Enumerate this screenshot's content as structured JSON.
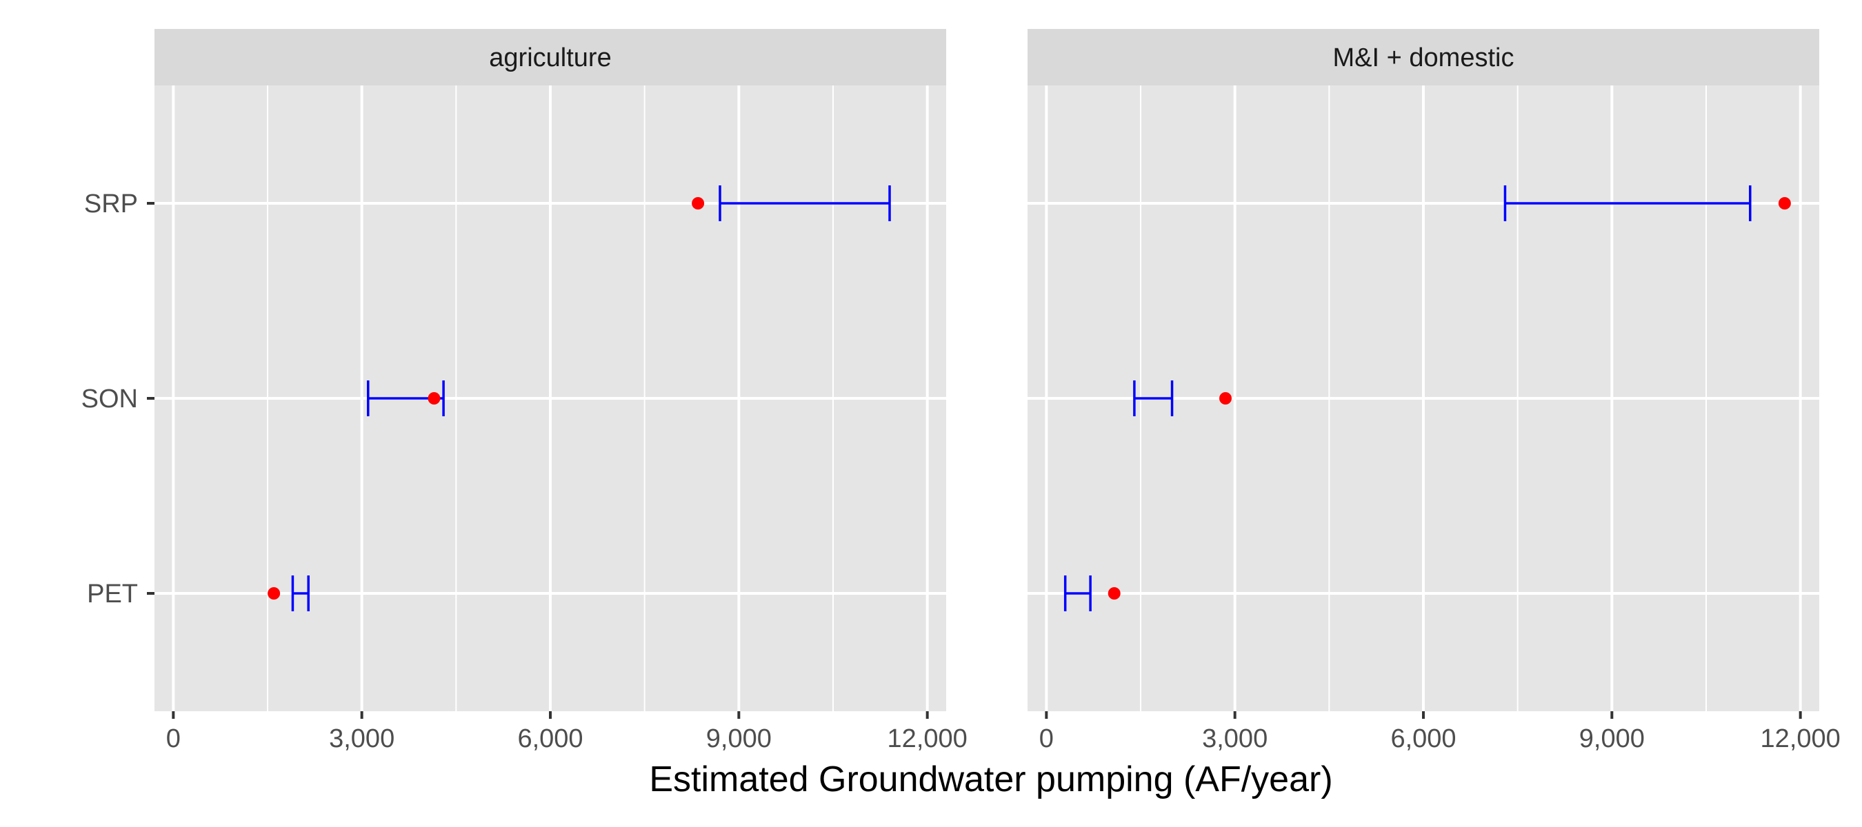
{
  "chart_data": {
    "type": "dot-errorbar",
    "xlabel": "Estimated Groundwater pumping (AF/year)",
    "ylabel": "",
    "xlim": [
      -300,
      12300
    ],
    "x_ticks": [
      0,
      3000,
      6000,
      9000,
      12000
    ],
    "x_tick_labels": [
      "0",
      "3,000",
      "6,000",
      "9,000",
      "12,000"
    ],
    "categories": [
      "SRP",
      "SON",
      "PET"
    ],
    "grid": true,
    "colors": {
      "point": "#ff0000",
      "errorbar": "#0000ff",
      "panel_bg": "#e5e5e5",
      "strip_bg": "#d9d9d9",
      "grid": "#ffffff"
    },
    "panels": [
      {
        "name": "agriculture",
        "points": {
          "SRP": 8350,
          "SON": 4150,
          "PET": 1600
        },
        "ranges": {
          "SRP": [
            8700,
            11400
          ],
          "SON": [
            3100,
            4300
          ],
          "PET": [
            1900,
            2150
          ]
        }
      },
      {
        "name": "M&I + domestic",
        "points": {
          "SRP": 11750,
          "SON": 2850,
          "PET": 1080
        },
        "ranges": {
          "SRP": [
            7300,
            11200
          ],
          "SON": [
            1400,
            2000
          ],
          "PET": [
            300,
            700
          ]
        }
      }
    ]
  }
}
